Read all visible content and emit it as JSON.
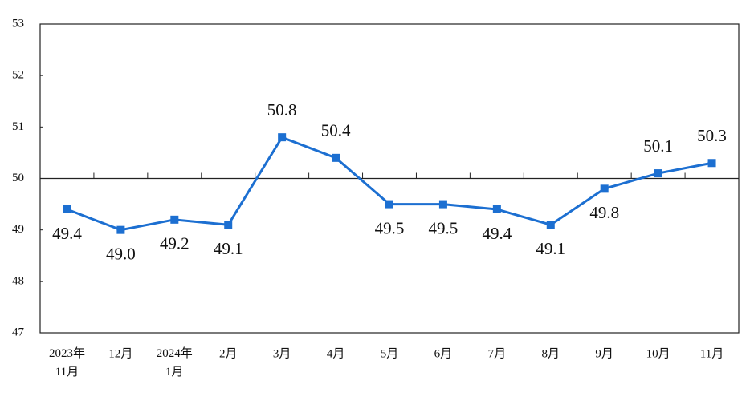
{
  "chart_data": {
    "type": "line",
    "categories": [
      "2023年\n11月",
      "12月",
      "2024年\n1月",
      "2月",
      "3月",
      "4月",
      "5月",
      "6月",
      "7月",
      "8月",
      "9月",
      "10月",
      "11月"
    ],
    "series": [
      {
        "color": "#1c6fd1",
        "values": [
          49.4,
          49.0,
          49.2,
          49.1,
          50.8,
          50.4,
          49.5,
          49.5,
          49.4,
          49.1,
          49.8,
          50.1,
          50.3
        ],
        "value_labels": [
          "49.4",
          "49.0",
          "49.2",
          "49.1",
          "50.8",
          "50.4",
          "49.5",
          "49.5",
          "49.4",
          "49.1",
          "49.8",
          "50.1",
          "50.3"
        ]
      }
    ],
    "ylim": [
      47,
      53
    ],
    "yticks": [
      47,
      48,
      49,
      50,
      51,
      52,
      53
    ],
    "reference_line": 50
  }
}
